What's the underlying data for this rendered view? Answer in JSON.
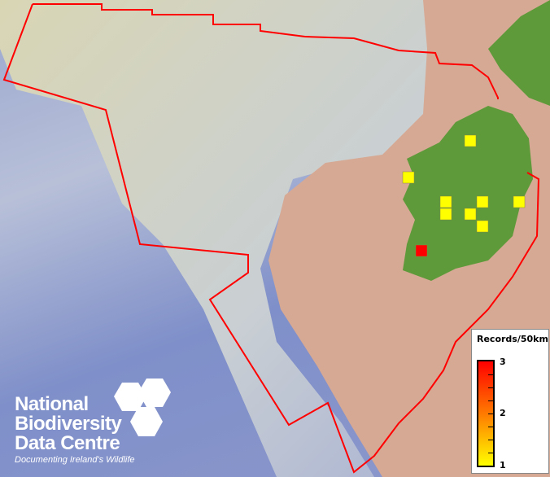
{
  "legend": {
    "title": "Records/50km",
    "max_label": "3",
    "mid_label": "2",
    "min_label": "1",
    "color_low": "#ffff00",
    "color_high": "#ff0000"
  },
  "logo": {
    "line1": "National",
    "line2": "Biodiversity",
    "line3": "Data Centre",
    "tagline": "Documenting Ireland's Wildlife"
  },
  "colors": {
    "boundary": "#ff0000",
    "land": "#5e9a3a",
    "shelf": "#d8a98e"
  },
  "records": [
    1,
    1,
    1,
    1,
    1,
    1,
    1,
    1,
    3
  ]
}
